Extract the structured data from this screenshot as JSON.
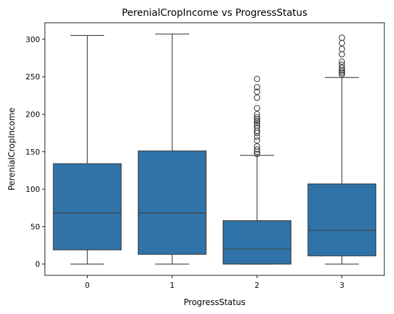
{
  "chart_data": {
    "type": "box",
    "title": "PerenialCropIncome vs ProgressStatus",
    "xlabel": "ProgressStatus",
    "ylabel": "PerenialCropIncome",
    "categories": [
      "0",
      "1",
      "2",
      "3"
    ],
    "ylim": [
      -15,
      322
    ],
    "yticks": [
      0,
      50,
      100,
      150,
      200,
      250,
      300
    ],
    "box_color": "#2f73a8",
    "line_color": "#3d3d3d",
    "grid": false,
    "boxes": [
      {
        "category": "0",
        "whisker_low": 0,
        "q1": 19,
        "median": 68,
        "q3": 134,
        "whisker_high": 305,
        "outliers": []
      },
      {
        "category": "1",
        "whisker_low": 0,
        "q1": 13,
        "median": 68,
        "q3": 151,
        "whisker_high": 307,
        "outliers": []
      },
      {
        "category": "2",
        "whisker_low": 0,
        "q1": 0,
        "median": 20,
        "q3": 58,
        "whisker_high": 145,
        "outliers": [
          147,
          150,
          153,
          157,
          165,
          170,
          175,
          178,
          182,
          185,
          188,
          191,
          193,
          196,
          200,
          208,
          222,
          230,
          236,
          247
        ]
      },
      {
        "category": "3",
        "whisker_low": 0,
        "q1": 11,
        "median": 45,
        "q3": 107,
        "whisker_high": 249,
        "outliers": [
          253,
          255,
          257,
          259,
          262,
          266,
          270,
          280,
          287,
          295,
          302
        ]
      }
    ]
  }
}
